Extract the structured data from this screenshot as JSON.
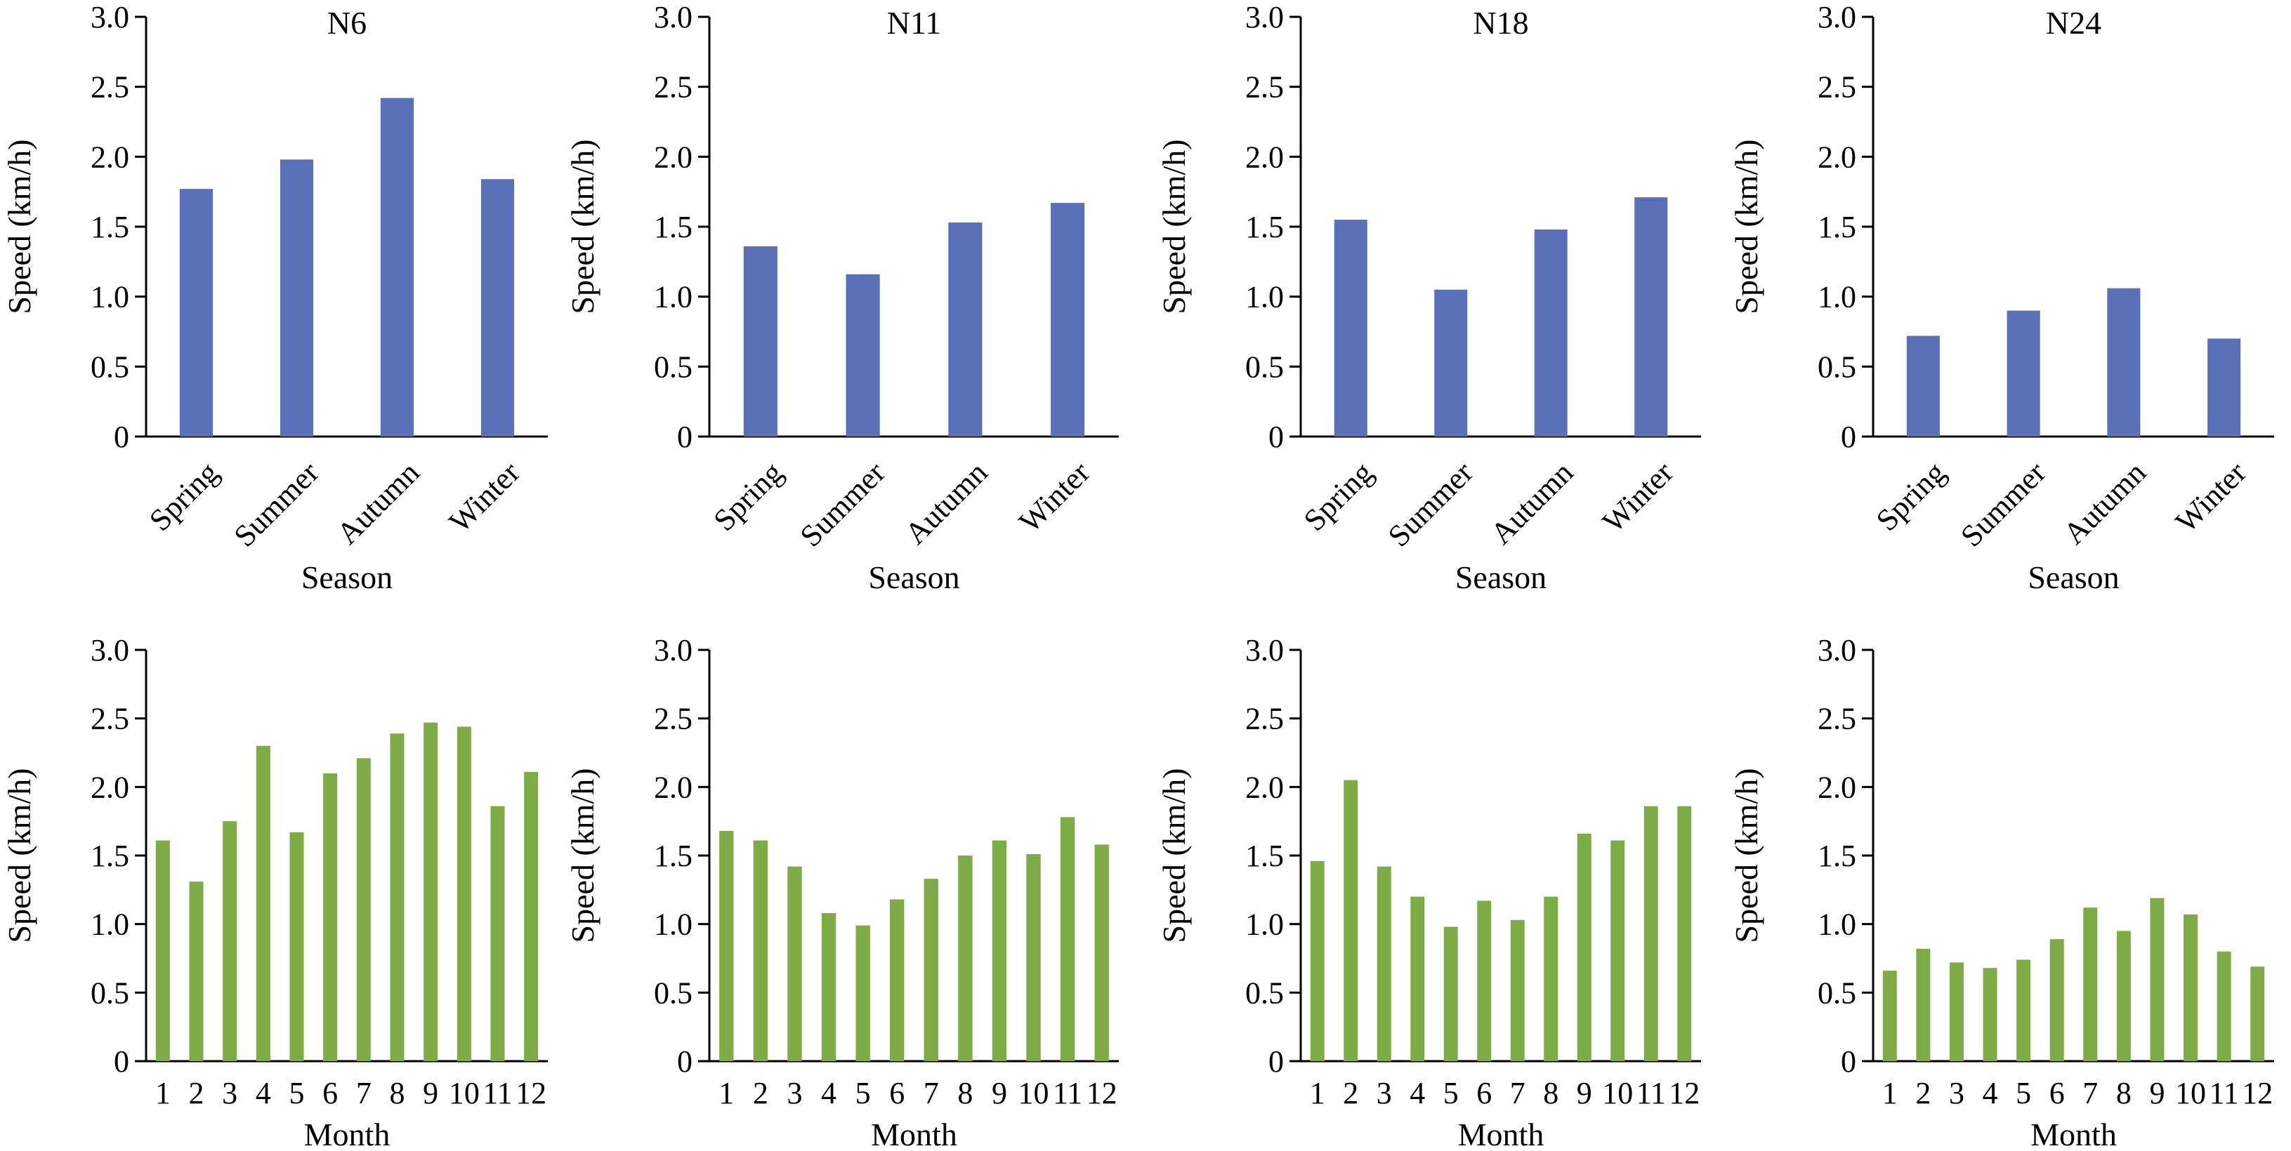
{
  "colors": {
    "season_bar": "#5a70b8",
    "month_bar": "#7fab46"
  },
  "chart_data": [
    {
      "type": "bar",
      "title": "N6",
      "xlabel": "Season",
      "ylabel": "Speed (km/h)",
      "ylim": [
        0,
        3.0
      ],
      "yticks": [
        "0",
        "0.5",
        "1.0",
        "1.5",
        "2.0",
        "2.5",
        "3.0"
      ],
      "categories": [
        "Spring",
        "Summer",
        "Autumn",
        "Winter"
      ],
      "values": [
        1.77,
        1.98,
        2.42,
        1.84
      ],
      "grid": false,
      "legend": "none"
    },
    {
      "type": "bar",
      "title": "N11",
      "xlabel": "Season",
      "ylabel": "Speed (km/h)",
      "ylim": [
        0,
        3.0
      ],
      "yticks": [
        "0",
        "0.5",
        "1.0",
        "1.5",
        "2.0",
        "2.5",
        "3.0"
      ],
      "categories": [
        "Spring",
        "Summer",
        "Autumn",
        "Winter"
      ],
      "values": [
        1.36,
        1.16,
        1.53,
        1.67
      ],
      "grid": false,
      "legend": "none"
    },
    {
      "type": "bar",
      "title": "N18",
      "xlabel": "Season",
      "ylabel": "Speed (km/h)",
      "ylim": [
        0,
        3.0
      ],
      "yticks": [
        "0",
        "0.5",
        "1.0",
        "1.5",
        "2.0",
        "2.5",
        "3.0"
      ],
      "categories": [
        "Spring",
        "Summer",
        "Autumn",
        "Winter"
      ],
      "values": [
        1.55,
        1.05,
        1.48,
        1.71
      ],
      "grid": false,
      "legend": "none"
    },
    {
      "type": "bar",
      "title": "N24",
      "xlabel": "Season",
      "ylabel": "Speed (km/h)",
      "ylim": [
        0,
        3.0
      ],
      "yticks": [
        "0",
        "0.5",
        "1.0",
        "1.5",
        "2.0",
        "2.5",
        "3.0"
      ],
      "categories": [
        "Spring",
        "Summer",
        "Autumn",
        "Winter"
      ],
      "values": [
        0.72,
        0.9,
        1.06,
        0.7
      ],
      "grid": false,
      "legend": "none"
    },
    {
      "type": "bar",
      "title": "",
      "xlabel": "Month",
      "ylabel": "Speed (km/h)",
      "ylim": [
        0,
        3.0
      ],
      "yticks": [
        "0",
        "0.5",
        "1.0",
        "1.5",
        "2.0",
        "2.5",
        "3.0"
      ],
      "categories": [
        "1",
        "2",
        "3",
        "4",
        "5",
        "6",
        "7",
        "8",
        "9",
        "10",
        "11",
        "12"
      ],
      "values": [
        1.61,
        1.31,
        1.75,
        2.3,
        1.67,
        2.1,
        2.21,
        2.39,
        2.47,
        2.44,
        1.86,
        2.11
      ],
      "grid": false,
      "legend": "none"
    },
    {
      "type": "bar",
      "title": "",
      "xlabel": "Month",
      "ylabel": "Speed (km/h)",
      "ylim": [
        0,
        3.0
      ],
      "yticks": [
        "0",
        "0.5",
        "1.0",
        "1.5",
        "2.0",
        "2.5",
        "3.0"
      ],
      "categories": [
        "1",
        "2",
        "3",
        "4",
        "5",
        "6",
        "7",
        "8",
        "9",
        "10",
        "11",
        "12"
      ],
      "values": [
        1.68,
        1.61,
        1.42,
        1.08,
        0.99,
        1.18,
        1.33,
        1.5,
        1.61,
        1.51,
        1.78,
        1.58
      ],
      "grid": false,
      "legend": "none"
    },
    {
      "type": "bar",
      "title": "",
      "xlabel": "Month",
      "ylabel": "Speed (km/h)",
      "ylim": [
        0,
        3.0
      ],
      "yticks": [
        "0",
        "0.5",
        "1.0",
        "1.5",
        "2.0",
        "2.5",
        "3.0"
      ],
      "categories": [
        "1",
        "2",
        "3",
        "4",
        "5",
        "6",
        "7",
        "8",
        "9",
        "10",
        "11",
        "12"
      ],
      "values": [
        1.46,
        2.05,
        1.42,
        1.2,
        0.98,
        1.17,
        1.03,
        1.2,
        1.66,
        1.61,
        1.86,
        1.86
      ],
      "grid": false,
      "legend": "none"
    },
    {
      "type": "bar",
      "title": "",
      "xlabel": "Month",
      "ylabel": "Speed (km/h)",
      "ylim": [
        0,
        3.0
      ],
      "yticks": [
        "0",
        "0.5",
        "1.0",
        "1.5",
        "2.0",
        "2.5",
        "3.0"
      ],
      "categories": [
        "1",
        "2",
        "3",
        "4",
        "5",
        "6",
        "7",
        "8",
        "9",
        "10",
        "11",
        "12"
      ],
      "values": [
        0.66,
        0.82,
        0.72,
        0.68,
        0.74,
        0.89,
        1.12,
        0.95,
        1.19,
        1.07,
        0.8,
        0.69
      ],
      "grid": false,
      "legend": "none"
    }
  ]
}
